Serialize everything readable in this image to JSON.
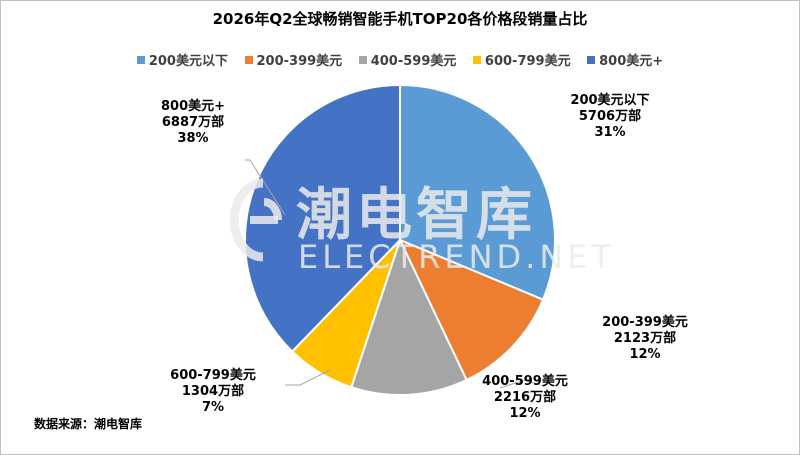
{
  "chart_data": {
    "type": "pie",
    "title": "2026年Q2全球畅销智能手机TOP20各价格段销量占比",
    "legend_position": "top",
    "slices": [
      {
        "name": "200美元以下",
        "value": 5706,
        "unit": "万部",
        "percent": "31%",
        "color": "#5B9BD5"
      },
      {
        "name": "200-399美元",
        "value": 2123,
        "unit": "万部",
        "percent": "12%",
        "color": "#ED7D31"
      },
      {
        "name": "400-599美元",
        "value": 2216,
        "unit": "万部",
        "percent": "12%",
        "color": "#A5A5A5"
      },
      {
        "name": "600-799美元",
        "value": 1304,
        "unit": "万部",
        "percent": "7%",
        "color": "#FFC000"
      },
      {
        "name": "800美元+",
        "value": 6887,
        "unit": "万部",
        "percent": "38%",
        "color": "#4472C4"
      }
    ]
  },
  "watermark": {
    "cn": "潮电智库",
    "en": "ELECTREND.NET"
  },
  "source": "数据来源：潮电智库"
}
